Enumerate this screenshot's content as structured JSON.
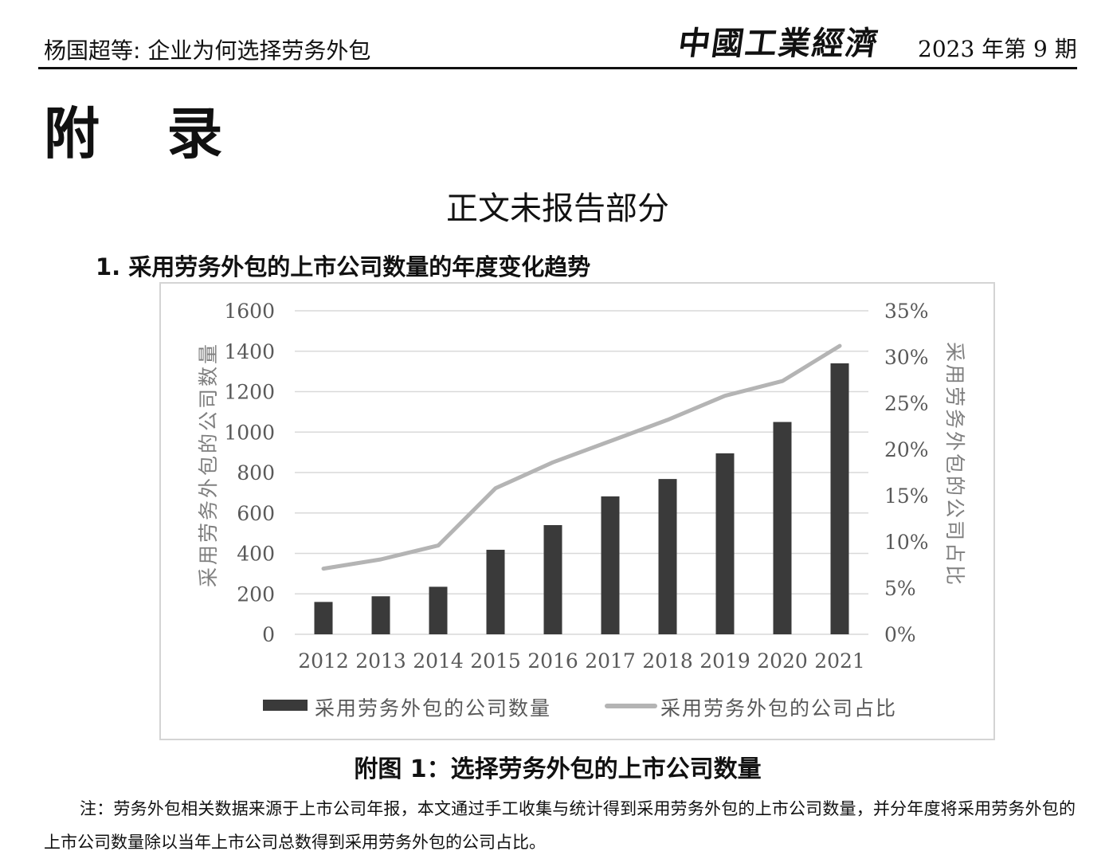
{
  "header": {
    "left_text": "杨国超等: 企业为何选择劳务外包",
    "journal": "中國工業經濟",
    "issue": "2023 年第 9 期"
  },
  "appendix_title": "附 录",
  "section_title": "正文未报告部分",
  "sub_heading": "1.  采用劳务外包的上市公司数量的年度变化趋势",
  "figure_caption": "附图 1：选择劳务外包的上市公司数量",
  "note": "注：劳务外包相关数据来源于上市公司年报，本文通过手工收集与统计得到采用劳务外包的上市公司数量，并分年度将采用劳务外包的上市公司数量除以当年上市公司总数得到采用劳务外包的公司占比。",
  "chart_data": {
    "type": "bar",
    "categories": [
      "2012",
      "2013",
      "2014",
      "2015",
      "2016",
      "2017",
      "2018",
      "2019",
      "2020",
      "2021"
    ],
    "series": [
      {
        "name": "采用劳务外包的公司数量",
        "type": "bar",
        "axis": "left",
        "color": "#3a3a3a",
        "values": [
          160,
          188,
          235,
          418,
          540,
          682,
          768,
          895,
          1050,
          1340
        ]
      },
      {
        "name": "采用劳务外包的公司占比",
        "type": "line",
        "axis": "right",
        "color": "#b4b4b4",
        "values": [
          0.071,
          0.081,
          0.096,
          0.158,
          0.186,
          0.209,
          0.232,
          0.258,
          0.274,
          0.312
        ]
      }
    ],
    "ylabel": "采用劳务外包的公司数量",
    "y2label": "采用劳务外包的公司占比",
    "ylim": [
      0,
      1600
    ],
    "yticks": [
      "0",
      "200",
      "400",
      "600",
      "800",
      "1000",
      "1200",
      "1400",
      "1600"
    ],
    "y2lim": [
      0,
      0.35
    ],
    "y2ticks": [
      "0%",
      "5%",
      "10%",
      "15%",
      "20%",
      "25%",
      "30%",
      "35%"
    ],
    "grid": true,
    "legend": "bottom"
  }
}
